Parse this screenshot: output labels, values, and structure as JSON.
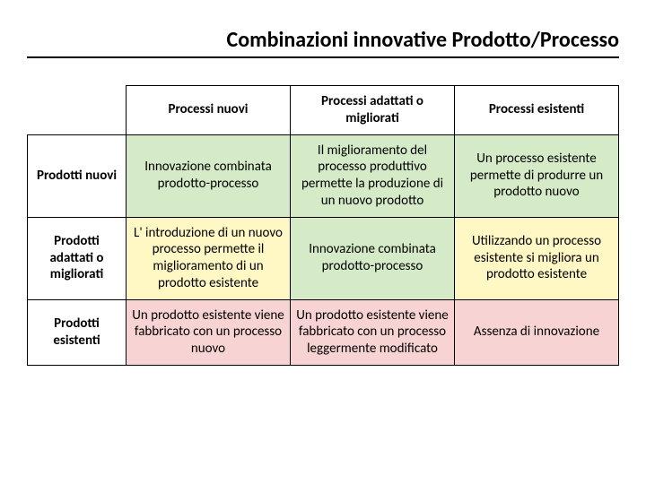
{
  "title": "Combinazioni innovative Prodotto/Processo",
  "table": {
    "col_headers": [
      "Processi nuovi",
      "Processi adattati o migliorati",
      "Processi esistenti"
    ],
    "row_headers": [
      "Prodotti nuovi",
      "Prodotti adattati o migliorati",
      "Prodotti esistenti"
    ],
    "rows": [
      [
        {
          "text": "Innovazione combinata prodotto-processo",
          "color": "green"
        },
        {
          "text": "Il miglioramento del processo produttivo permette la produzione di un nuovo prodotto",
          "color": "green"
        },
        {
          "text": "Un processo esistente permette di produrre un prodotto nuovo",
          "color": "green"
        }
      ],
      [
        {
          "text": "L' introduzione di un nuovo processo permette il miglioramento di un prodotto esistente",
          "color": "yellow"
        },
        {
          "text": "Innovazione combinata prodotto-processo",
          "color": "green"
        },
        {
          "text": "Utilizzando un processo esistente si migliora un prodotto esistente",
          "color": "yellow"
        }
      ],
      [
        {
          "text": "Un prodotto esistente viene fabbricato con un processo nuovo",
          "color": "pink"
        },
        {
          "text": "Un prodotto esistente viene fabbricato con un processo leggermente modificato",
          "color": "pink"
        },
        {
          "text": "Assenza di innovazione",
          "color": "pink"
        }
      ]
    ],
    "colors": {
      "green": "#d5ebc7",
      "yellow": "#fff7c4",
      "pink": "#f7d3d3",
      "border": "#000000",
      "text": "#000000",
      "background": "#ffffff"
    },
    "fontsize_title": 24,
    "fontsize_cell": 15,
    "font_family": "Calibri"
  }
}
